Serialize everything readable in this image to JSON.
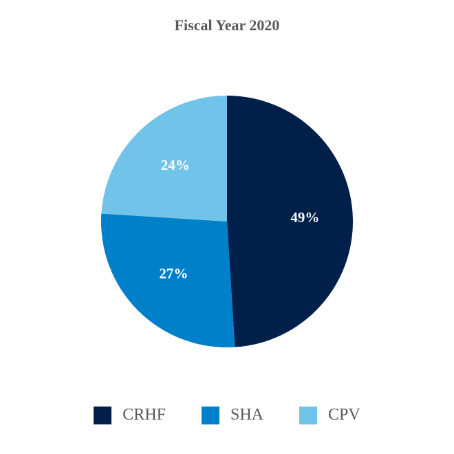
{
  "chart_data": {
    "type": "pie",
    "title": "Fiscal Year 2020",
    "categories": [
      "CRHF",
      "SHA",
      "CPV"
    ],
    "values": [
      49,
      27,
      24
    ],
    "labels": [
      "49%",
      "27%",
      "24%"
    ],
    "colors": [
      "#00204a",
      "#0080c8",
      "#72c3ea"
    ],
    "legend_position": "bottom"
  }
}
